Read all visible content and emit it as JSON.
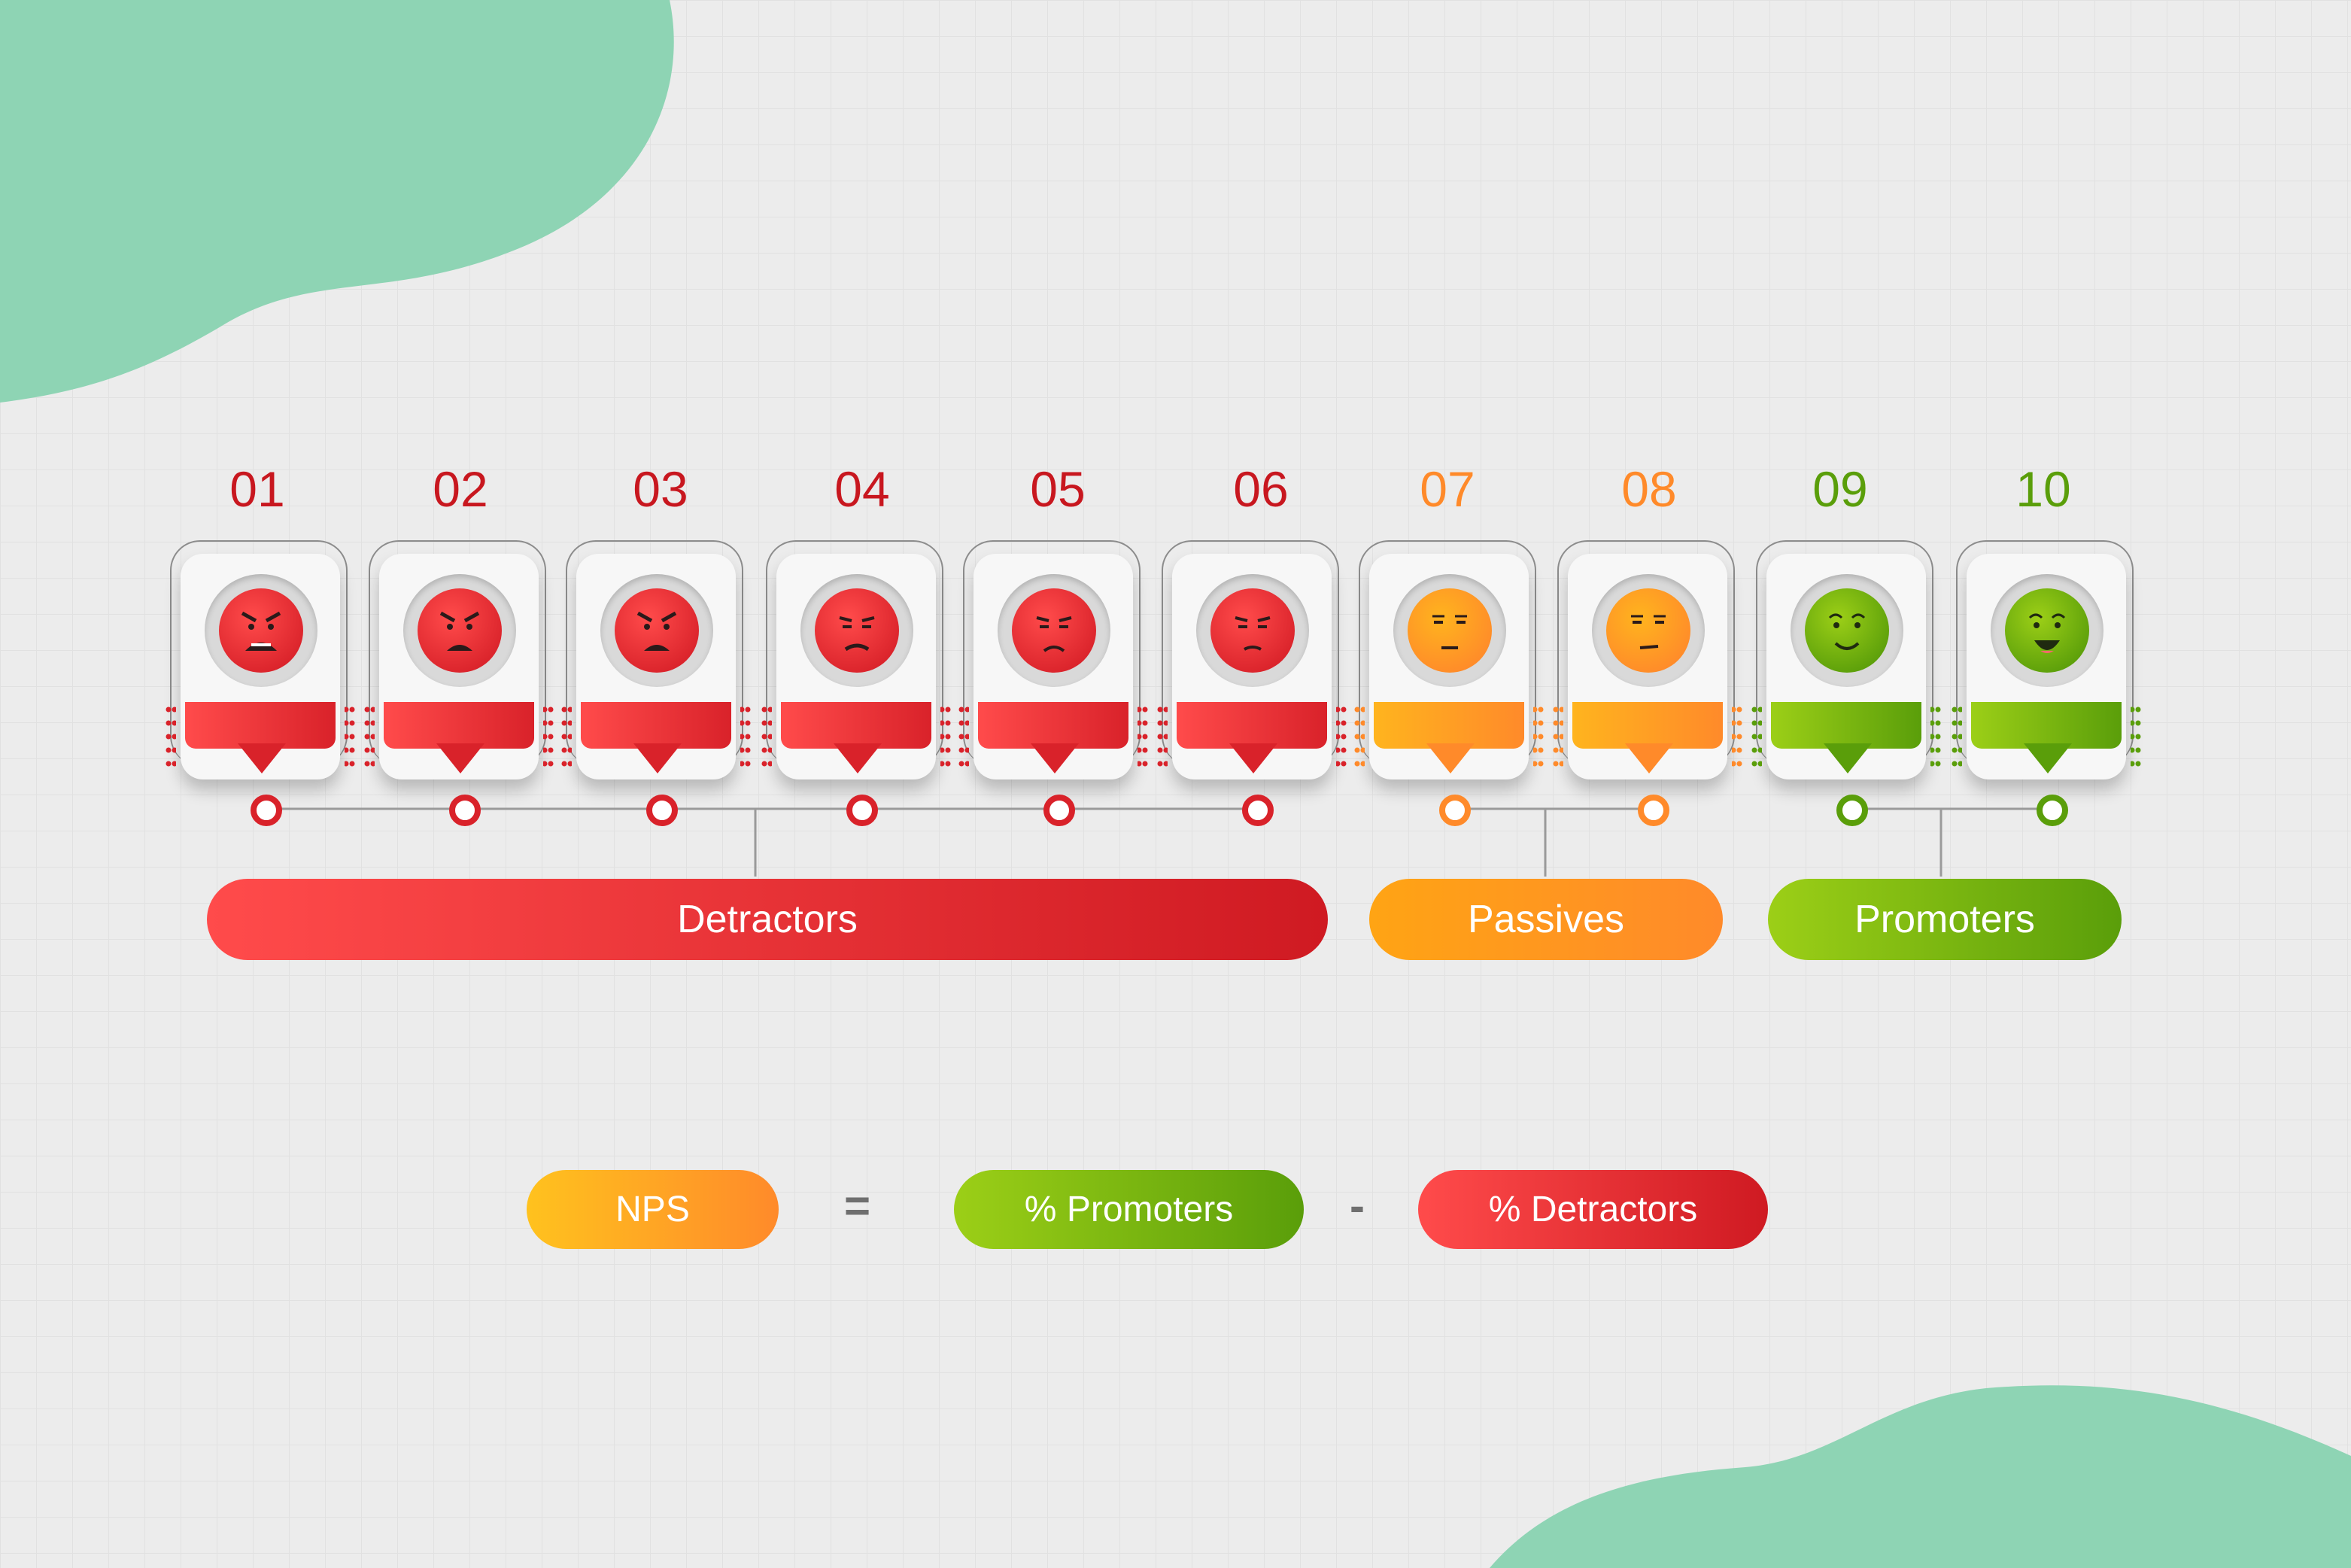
{
  "scale": [
    {
      "label": "01",
      "group": "detractor",
      "mood": "furious"
    },
    {
      "label": "02",
      "group": "detractor",
      "mood": "angry"
    },
    {
      "label": "03",
      "group": "detractor",
      "mood": "angry"
    },
    {
      "label": "04",
      "group": "detractor",
      "mood": "upset"
    },
    {
      "label": "05",
      "group": "detractor",
      "mood": "sad"
    },
    {
      "label": "06",
      "group": "detractor",
      "mood": "displeased"
    },
    {
      "label": "07",
      "group": "passive",
      "mood": "neutral"
    },
    {
      "label": "08",
      "group": "passive",
      "mood": "neutral-smirk"
    },
    {
      "label": "09",
      "group": "promoter",
      "mood": "smile"
    },
    {
      "label": "10",
      "group": "promoter",
      "mood": "happy"
    }
  ],
  "groups": {
    "detractor": {
      "label": "Detractors",
      "color": "#d9222a",
      "color_light": "#ff4b4b"
    },
    "passive": {
      "label": "Passives",
      "color": "#ff8a2a",
      "color_light": "#ffb41e"
    },
    "promoter": {
      "label": "Promoters",
      "color": "#5a9e0a",
      "color_light": "#9ccf17"
    }
  },
  "formula": {
    "nps": "NPS",
    "equals": "=",
    "promoters": "% Promoters",
    "minus": "-",
    "detractors": "% Detractors"
  },
  "colors": {
    "blob": "#8ed4b4",
    "background": "#ececec",
    "number_detractor": "#c8171f",
    "number_passive": "#ff8a2a",
    "number_promoter": "#5a9e0a"
  }
}
